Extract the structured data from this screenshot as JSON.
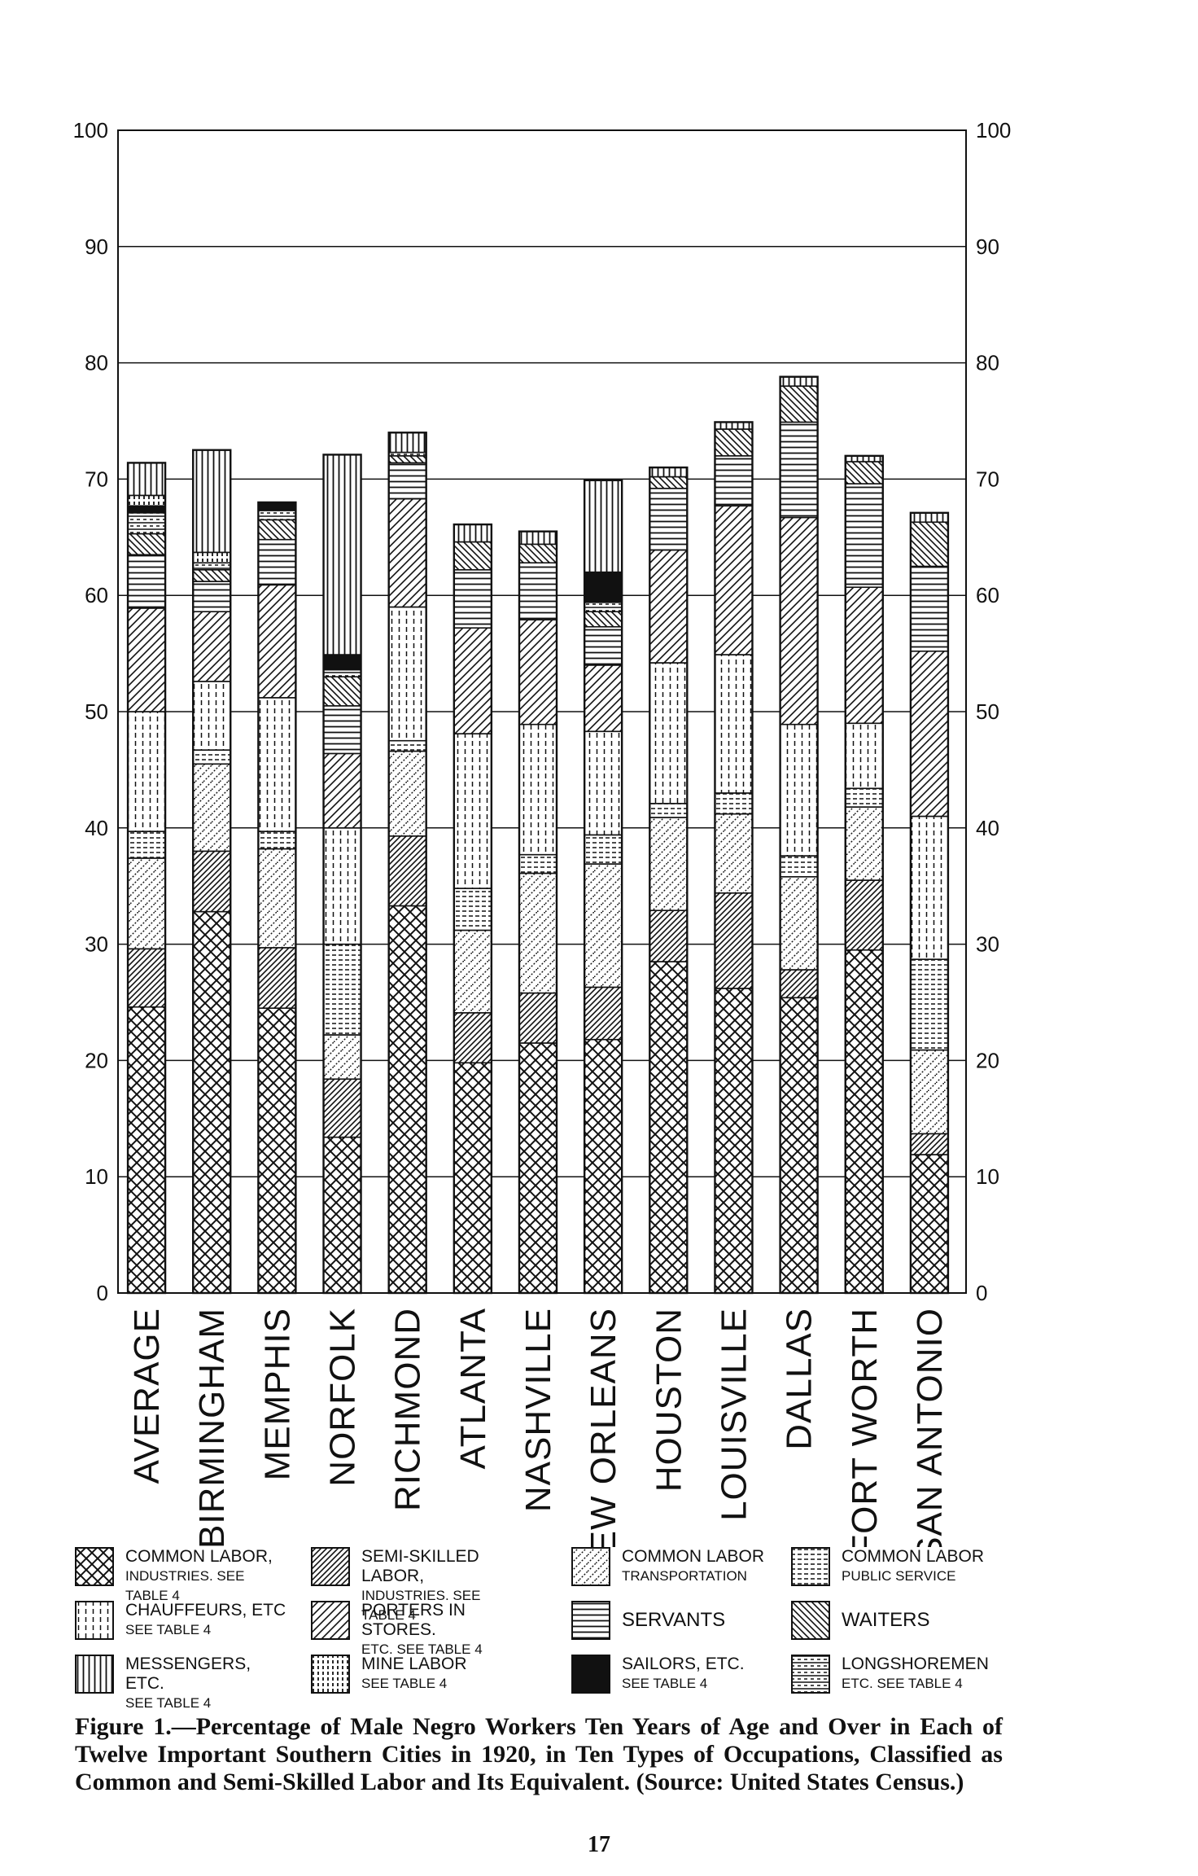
{
  "chart_data": {
    "type": "bar",
    "stacked": true,
    "title": "",
    "xlabel": "",
    "ylabel": "",
    "ylim": [
      0,
      100
    ],
    "yticks_left": [
      "0",
      "10",
      "20",
      "30",
      "40",
      "50",
      "60",
      "70",
      "80",
      "90",
      "100"
    ],
    "yticks_right": [
      "0",
      "10",
      "20",
      "30",
      "40",
      "50",
      "60",
      "70",
      "80",
      "90",
      "100"
    ],
    "grid": true,
    "legend_position": "bottom",
    "categories": [
      "AVERAGE",
      "BIRMINGHAM",
      "MEMPHIS",
      "NORFOLK",
      "RICHMOND",
      "ATLANTA",
      "NASHVILLE",
      "NEW ORLEANS",
      "HOUSTON",
      "LOUISVILLE",
      "DALLAS",
      "FORT WORTH",
      "SAN ANTONIO"
    ],
    "series": [
      {
        "name": "COMMON LABOR, INDUSTRIES. See Table 4",
        "pattern": "crosshatch",
        "values": [
          24.6,
          32.8,
          24.5,
          13.4,
          33.3,
          19.8,
          21.5,
          21.8,
          28.5,
          26.2,
          25.4,
          29.5,
          11.9
        ]
      },
      {
        "name": "SEMI-SKILLED LABOR, INDUSTRIES. See Table 4",
        "pattern": "semi-skilled",
        "values": [
          5.0,
          5.2,
          5.2,
          5.0,
          6.0,
          4.3,
          4.3,
          4.5,
          4.4,
          8.2,
          2.4,
          6.0,
          1.8
        ]
      },
      {
        "name": "COMMON LABOR TRANSPORTATION",
        "pattern": "dotted-diagonal",
        "values": [
          7.8,
          7.5,
          8.5,
          3.8,
          7.3,
          7.1,
          10.3,
          10.6,
          8.0,
          6.8,
          8.0,
          6.3,
          7.2
        ]
      },
      {
        "name": "COMMON LABOR PUBLIC SERVICE",
        "pattern": "dashed-horizontal",
        "values": [
          2.3,
          1.2,
          1.5,
          7.8,
          0.9,
          3.6,
          1.6,
          2.5,
          1.2,
          1.8,
          1.8,
          1.6,
          7.8
        ]
      },
      {
        "name": "CHAUFFEURS, ETC. See Table 4",
        "pattern": "dashed-vertical",
        "values": [
          10.3,
          5.9,
          11.5,
          10.0,
          11.5,
          13.3,
          11.2,
          8.9,
          12.1,
          11.9,
          11.3,
          5.6,
          12.3
        ]
      },
      {
        "name": "PORTERS IN STORES. ETC. See Table 4",
        "pattern": "diagonal",
        "values": [
          8.9,
          6.0,
          9.7,
          6.4,
          9.3,
          9.1,
          9.0,
          5.7,
          9.7,
          12.8,
          17.8,
          11.7,
          14.2
        ]
      },
      {
        "name": "SERVANTS",
        "pattern": "horizontal",
        "values": [
          4.6,
          2.6,
          3.9,
          4.1,
          3.1,
          5.0,
          4.9,
          3.3,
          5.3,
          4.3,
          8.2,
          8.9,
          7.3
        ]
      },
      {
        "name": "WAITERS",
        "pattern": "waiters",
        "values": [
          1.8,
          1.0,
          1.7,
          2.5,
          0.6,
          2.4,
          1.6,
          1.3,
          1.0,
          2.3,
          3.1,
          1.9,
          3.8
        ]
      },
      {
        "name": "LONGSHOREMEN ETC. See Table 4",
        "pattern": "longshoremen",
        "values": [
          1.8,
          0.6,
          0.8,
          0.6,
          0.3,
          0.0,
          0.0,
          0.8,
          0.0,
          0.0,
          0.0,
          0.0,
          0.0
        ]
      },
      {
        "name": "SAILORS, ETC. See Table 4",
        "pattern": "solid",
        "values": [
          0.6,
          0.0,
          0.7,
          1.3,
          0.0,
          0.0,
          0.0,
          2.6,
          0.0,
          0.0,
          0.0,
          0.0,
          0.0
        ]
      },
      {
        "name": "MINE LABOR See Table 4",
        "pattern": "dashed-vertical-dense",
        "values": [
          0.9,
          0.9,
          0.0,
          0.0,
          0.0,
          0.0,
          0.0,
          0.0,
          0.0,
          0.0,
          0.0,
          0.0,
          0.0
        ]
      },
      {
        "name": "MESSENGERS, ETC. See Table 4",
        "pattern": "vertical",
        "values": [
          2.8,
          8.8,
          0.0,
          17.2,
          1.7,
          1.5,
          1.1,
          7.9,
          0.8,
          0.6,
          0.8,
          0.5,
          0.8
        ]
      }
    ]
  },
  "legend": [
    {
      "line1": "COMMON LABOR,",
      "line2": "INDUSTRIES. See Table 4",
      "pattern": "crosshatch"
    },
    {
      "line1": "SEMI-SKILLED LABOR,",
      "line2": "INDUSTRIES. See Table 4",
      "pattern": "semi-skilled"
    },
    {
      "line1": "COMMON LABOR",
      "line2": "TRANSPORTATION",
      "pattern": "dotted-diagonal"
    },
    {
      "line1": "COMMON LABOR",
      "line2": "PUBLIC SERVICE",
      "pattern": "dashed-horizontal"
    },
    {
      "line1": "CHAUFFEURS, ETC",
      "line2": "See Table 4",
      "pattern": "dashed-vertical"
    },
    {
      "line1": "PORTERS IN STORES.",
      "line2": "ETC. See Table 4",
      "pattern": "diagonal"
    },
    {
      "line1": "SERVANTS",
      "line2": "",
      "pattern": "horizontal"
    },
    {
      "line1": "WAITERS",
      "line2": "",
      "pattern": "waiters"
    },
    {
      "line1": "MESSENGERS, ETC.",
      "line2": "See Table 4",
      "pattern": "vertical"
    },
    {
      "line1": "MINE LABOR",
      "line2": "See Table 4",
      "pattern": "dashed-vertical-dense"
    },
    {
      "line1": "SAILORS, ETC.",
      "line2": "See Table 4",
      "pattern": "solid"
    },
    {
      "line1": "LONGSHOREMEN",
      "line2": "ETC. See Table 4",
      "pattern": "longshoremen"
    }
  ],
  "caption": "Figure 1.—Percentage of Male Negro Workers Ten Years of Age and Over in Each of Twelve Important Southern Cities in 1920, in Ten Types of Occupations, Classified as Common and Semi-Skilled Labor and Its Equivalent. (Source: United States Census.)",
  "page_number": "17"
}
